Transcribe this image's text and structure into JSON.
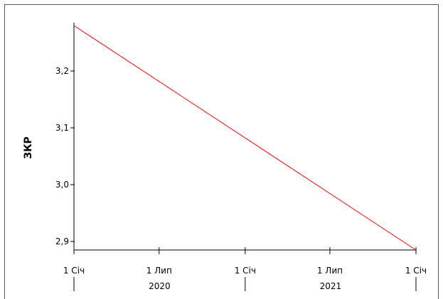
{
  "chart_data": {
    "type": "line",
    "title": "",
    "xlabel": "",
    "ylabel": "ЗКР",
    "x_ticks": [
      "1 Січ",
      "1 Лип",
      "1 Січ",
      "1 Лип",
      "1 Січ"
    ],
    "x_years": [
      "2020",
      "2021"
    ],
    "y_ticks": [
      "2,9",
      "3,0",
      "3,1",
      "3,2"
    ],
    "y_tick_values": [
      2.9,
      3.0,
      3.1,
      3.2
    ],
    "ylim": [
      2.885,
      3.285
    ],
    "grid": false,
    "legend": "none",
    "series": [
      {
        "color": "#ff0000",
        "x": [
          "2020-01-01",
          "2022-01-01"
        ],
        "y": [
          3.28,
          2.885
        ]
      }
    ]
  }
}
